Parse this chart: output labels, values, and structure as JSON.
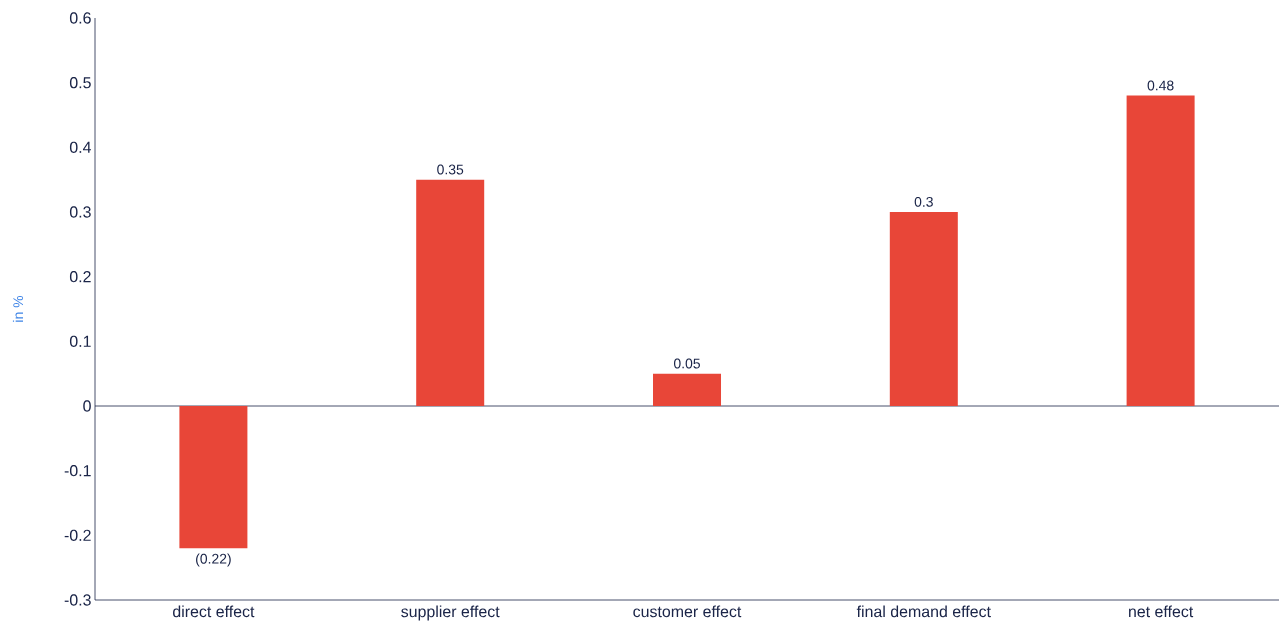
{
  "chart_data": {
    "type": "bar",
    "ylabel": "in %",
    "categories": [
      "direct effect",
      "supplier effect",
      "customer effect",
      "final demand effect",
      "net effect"
    ],
    "values": [
      -0.22,
      0.35,
      0.05,
      0.3,
      0.48
    ],
    "value_labels": [
      "(0.22)",
      "0.35",
      "0.05",
      "0.3",
      "0.48"
    ],
    "color": "#e84638",
    "ylim": [
      -0.3,
      0.6
    ],
    "yticks": [
      -0.3,
      -0.2,
      -0.1,
      0,
      0.1,
      0.2,
      0.3,
      0.4,
      0.5,
      0.6
    ],
    "grid": false
  }
}
